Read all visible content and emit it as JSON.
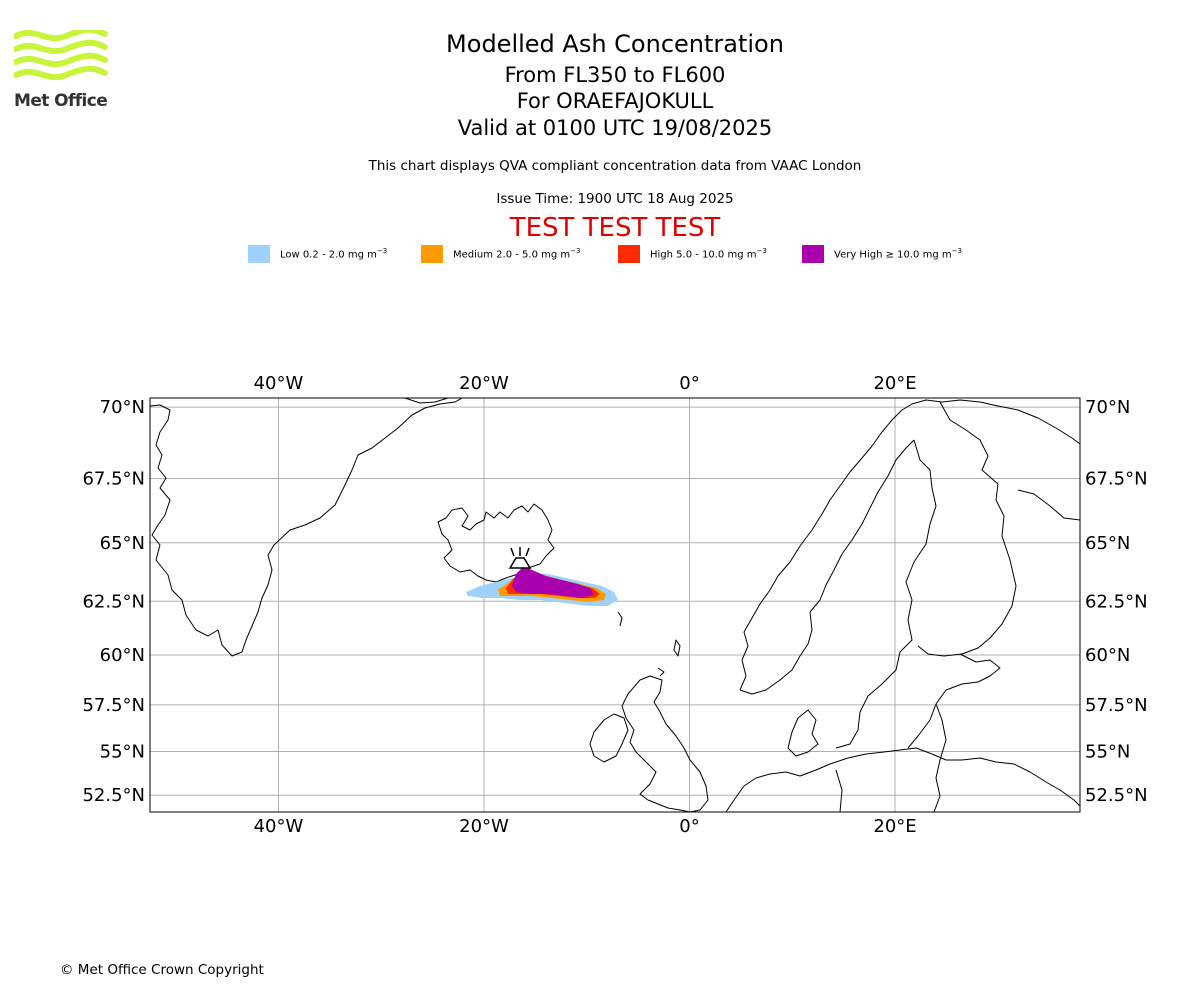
{
  "logo": {
    "text": "Met Office",
    "color": "#c8f53a"
  },
  "header": {
    "title": "Modelled Ash Concentration",
    "levels": "From FL350 to FL600",
    "volcano": "For ORAEFAJOKULL",
    "valid": "Valid at 0100 UTC 19/08/2025",
    "description": "This chart displays QVA compliant concentration data from VAAC London",
    "issue_time": "Issue Time: 1900 UTC 18 Aug 2025",
    "test_banner": "TEST TEST TEST"
  },
  "legend": [
    {
      "label": "Low 0.2 - 2.0 mg m",
      "exp": "−3",
      "color": "#9fd2fa"
    },
    {
      "label": "Medium 2.0 - 5.0 mg m",
      "exp": "−3",
      "color": "#ff9a00"
    },
    {
      "label": "High 5.0 - 10.0 mg m",
      "exp": "−3",
      "color": "#ff2a00"
    },
    {
      "label": "Very High  ≥  10.0 mg m",
      "exp": "−3",
      "color": "#aa00b0"
    }
  ],
  "map": {
    "lon_range": [
      -52.5,
      38
    ],
    "lat_range": [
      51.5,
      70.3
    ],
    "lon_ticks": [
      {
        "value": -40,
        "label": "40°W"
      },
      {
        "value": -20,
        "label": "20°W"
      },
      {
        "value": 0,
        "label": "0°"
      },
      {
        "value": 20,
        "label": "20°E"
      }
    ],
    "lat_ticks": [
      {
        "value": 70,
        "label": "70°N"
      },
      {
        "value": 67.5,
        "label": "67.5°N"
      },
      {
        "value": 65,
        "label": "65°N"
      },
      {
        "value": 62.5,
        "label": "62.5°N"
      },
      {
        "value": 60,
        "label": "60°N"
      },
      {
        "value": 57.5,
        "label": "57.5°N"
      },
      {
        "value": 55,
        "label": "55°N"
      },
      {
        "value": 52.5,
        "label": "52.5°N"
      }
    ],
    "volcano": {
      "name": "ORAEFAJOKULL",
      "lon": -16.6,
      "lat": 64.0
    },
    "ash_extent": {
      "low": {
        "lon": [
          -21.0,
          -6.7
        ],
        "lat": [
          62.3,
          63.9
        ]
      },
      "very_high": {
        "lon": [
          -17.5,
          -9.5
        ],
        "lat": [
          62.6,
          64.0
        ]
      }
    }
  },
  "footer": {
    "copyright": "© Met Office Crown Copyright"
  }
}
